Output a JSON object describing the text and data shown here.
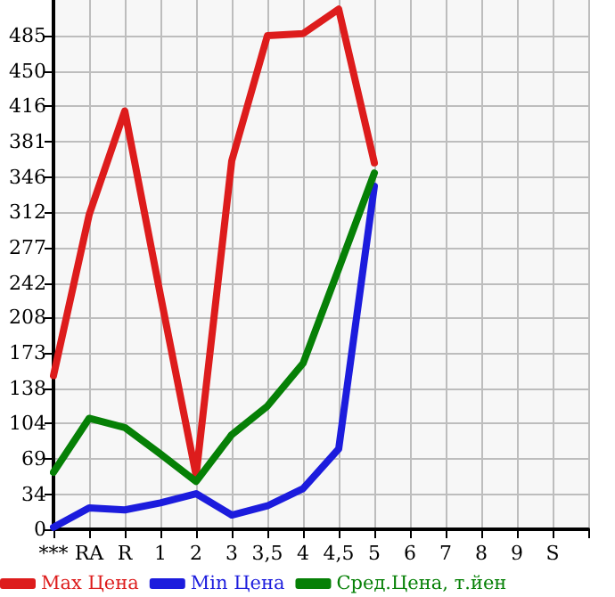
{
  "chart_data": {
    "type": "line",
    "categories": [
      "***",
      "RA",
      "R",
      "1",
      "2",
      "3",
      "3,5",
      "4",
      "4,5",
      "5",
      "6",
      "7",
      "8",
      "9",
      "S"
    ],
    "series": [
      {
        "name": "Max Цена",
        "color": "#dd1c1c",
        "values": [
          151,
          309,
          411,
          230,
          53,
          362,
          485,
          487,
          511,
          360,
          null,
          null,
          null,
          null,
          null
        ]
      },
      {
        "name": "Min Цена",
        "color": "#1c1cdd",
        "values": [
          2,
          21,
          19,
          26,
          35,
          14,
          23,
          40,
          79,
          337,
          null,
          null,
          null,
          null,
          null
        ]
      },
      {
        "name": "Сред.Цена, т.йен",
        "color": "#068006",
        "values": [
          56,
          109,
          100,
          74,
          47,
          93,
          121,
          163,
          256,
          350,
          null,
          null,
          null,
          null,
          null
        ]
      }
    ],
    "ylim": [
      0,
      520
    ],
    "yticks": [
      0,
      34,
      69,
      104,
      138,
      173,
      208,
      242,
      277,
      312,
      346,
      381,
      416,
      450,
      485
    ],
    "grid": true,
    "legend": "bottom",
    "marker": "none",
    "line_style": "solid"
  }
}
